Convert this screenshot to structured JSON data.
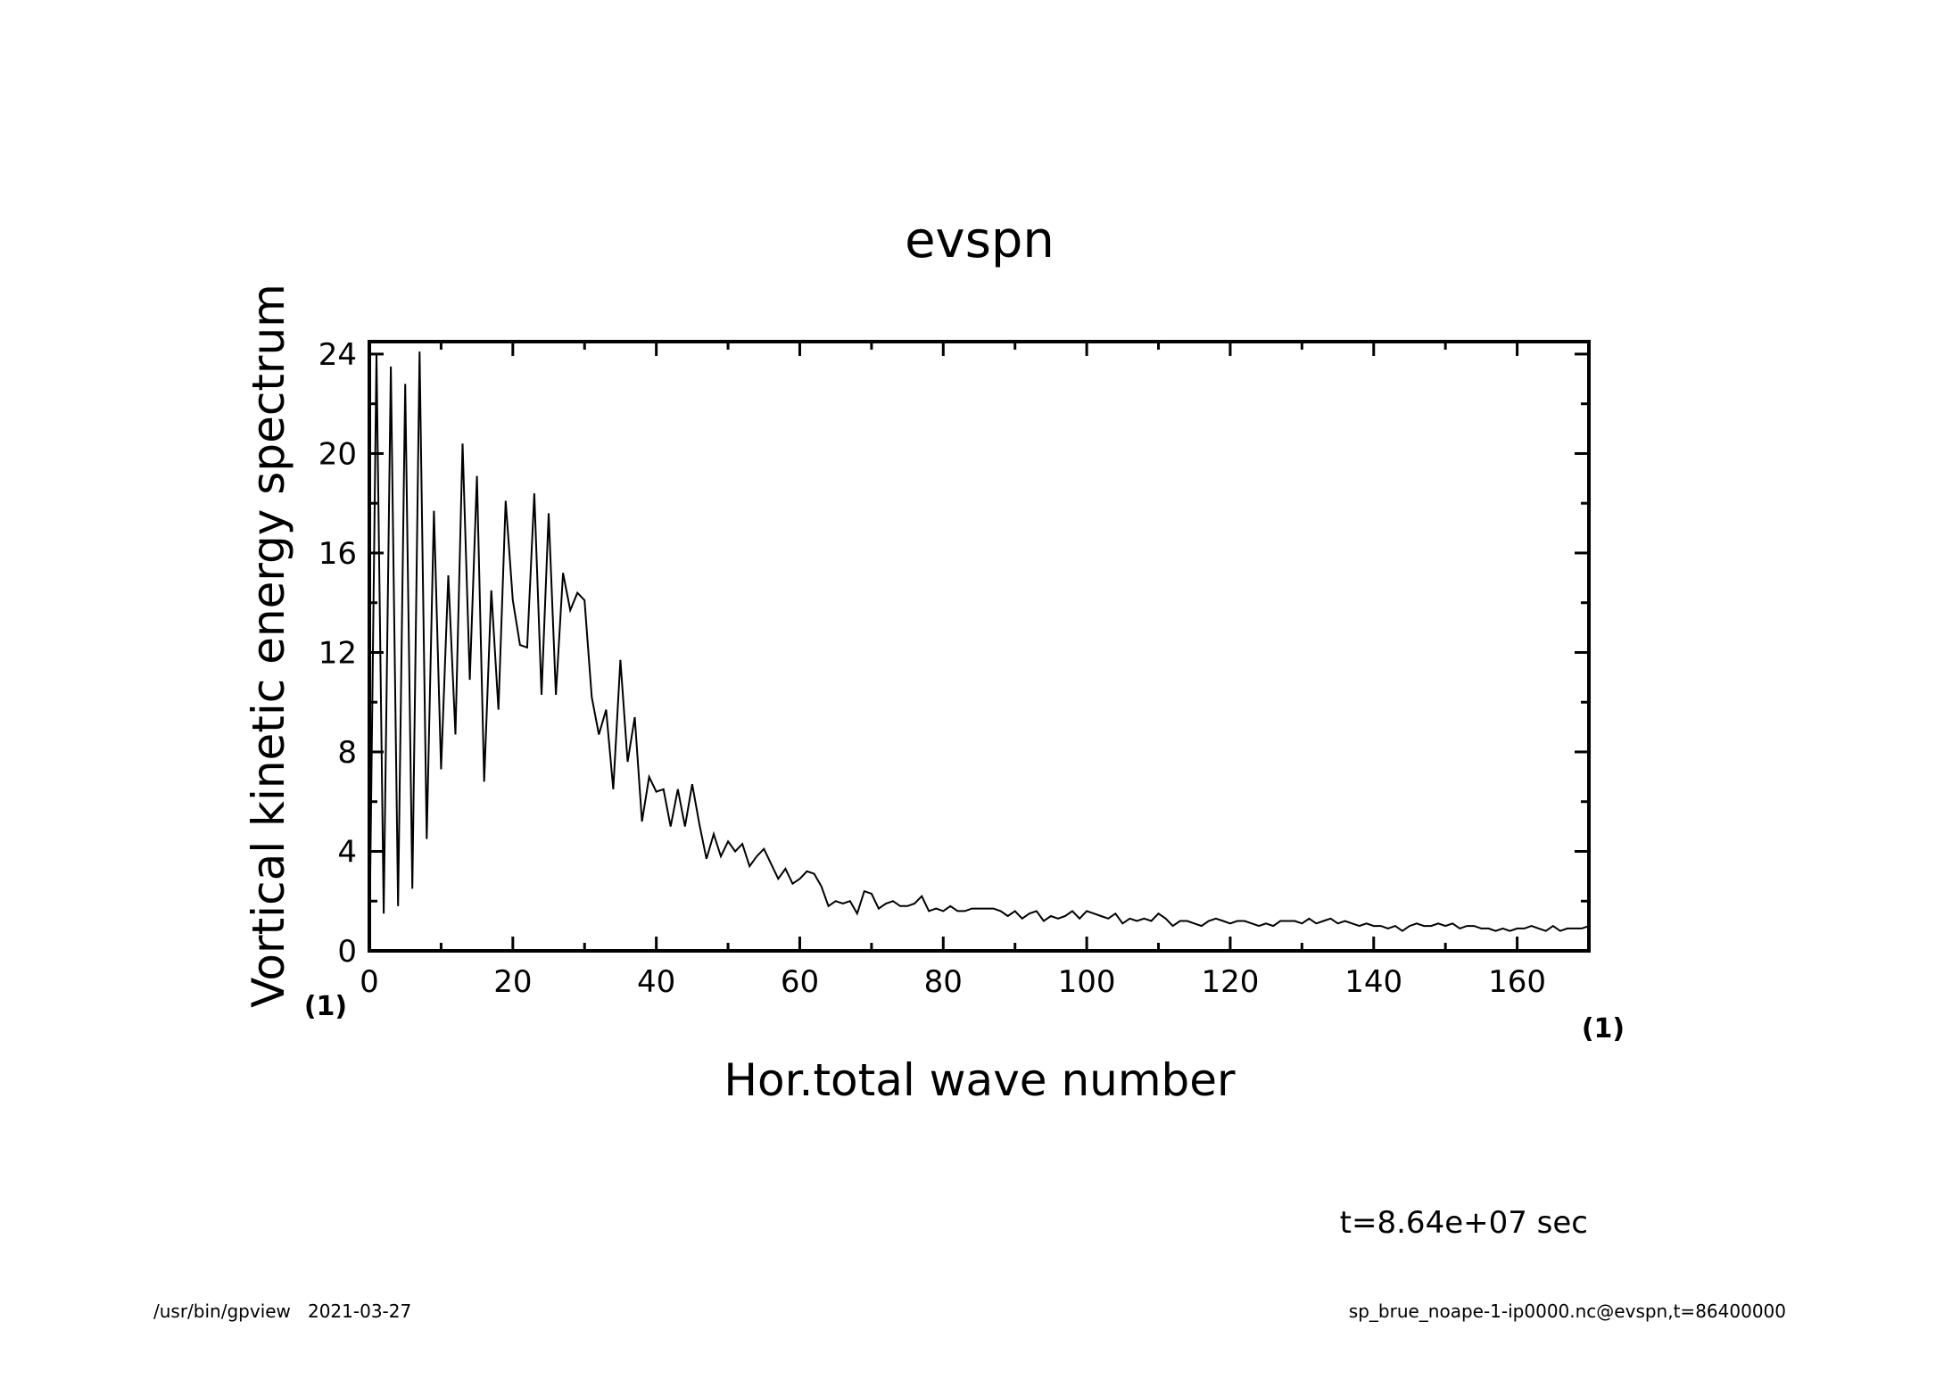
{
  "chart_data": {
    "type": "line",
    "title": "evspn",
    "xlabel": "Hor.total wave number",
    "ylabel": "Vortical kinetic energy spectrum",
    "xunit": "(1)",
    "yunit": "(1)",
    "xlim": [
      0,
      170
    ],
    "ylim": [
      0,
      24.5
    ],
    "xticks": [
      0,
      20,
      40,
      60,
      80,
      100,
      120,
      140,
      160
    ],
    "yticks": [
      0,
      4,
      8,
      12,
      16,
      20,
      24
    ],
    "grid": false,
    "legend": "none",
    "x": [
      0,
      1,
      2,
      3,
      4,
      5,
      6,
      7,
      8,
      9,
      10,
      11,
      12,
      13,
      14,
      15,
      16,
      17,
      18,
      19,
      20,
      21,
      22,
      23,
      24,
      25,
      26,
      27,
      28,
      29,
      30,
      31,
      32,
      33,
      34,
      35,
      36,
      37,
      38,
      39,
      40,
      41,
      42,
      43,
      44,
      45,
      46,
      47,
      48,
      49,
      50,
      51,
      52,
      53,
      54,
      55,
      56,
      57,
      58,
      59,
      60,
      61,
      62,
      63,
      64,
      65,
      66,
      67,
      68,
      69,
      70,
      71,
      72,
      73,
      74,
      75,
      76,
      77,
      78,
      79,
      80,
      81,
      82,
      83,
      84,
      85,
      86,
      87,
      88,
      89,
      90,
      91,
      92,
      93,
      94,
      95,
      96,
      97,
      98,
      99,
      100,
      101,
      102,
      103,
      104,
      105,
      106,
      107,
      108,
      109,
      110,
      111,
      112,
      113,
      114,
      115,
      116,
      117,
      118,
      119,
      120,
      121,
      122,
      123,
      124,
      125,
      126,
      127,
      128,
      129,
      130,
      131,
      132,
      133,
      134,
      135,
      136,
      137,
      138,
      139,
      140,
      141,
      142,
      143,
      144,
      145,
      146,
      147,
      148,
      149,
      150,
      151,
      152,
      153,
      154,
      155,
      156,
      157,
      158,
      159,
      160,
      161,
      162,
      163,
      164,
      165,
      166,
      167,
      168,
      169,
      170
    ],
    "y": [
      0,
      24.0,
      1.5,
      23.5,
      1.8,
      22.8,
      2.5,
      24.1,
      4.5,
      17.7,
      7.3,
      15.1,
      8.7,
      20.4,
      10.9,
      19.1,
      6.8,
      14.5,
      9.7,
      18.1,
      14.1,
      12.3,
      12.2,
      18.4,
      10.3,
      17.6,
      10.3,
      15.2,
      13.7,
      14.4,
      14.1,
      10.2,
      8.7,
      9.7,
      6.5,
      11.7,
      7.6,
      9.4,
      5.2,
      7.0,
      6.4,
      6.5,
      5.0,
      6.5,
      5.0,
      6.7,
      5.1,
      3.7,
      4.7,
      3.8,
      4.4,
      4.0,
      4.3,
      3.4,
      3.8,
      4.1,
      3.5,
      2.9,
      3.3,
      2.7,
      2.9,
      3.2,
      3.1,
      2.6,
      1.8,
      2.0,
      1.9,
      2.0,
      1.5,
      2.4,
      2.3,
      1.7,
      1.9,
      2.0,
      1.8,
      1.8,
      1.9,
      2.2,
      1.6,
      1.7,
      1.6,
      1.8,
      1.6,
      1.6,
      1.7,
      1.7,
      1.7,
      1.7,
      1.6,
      1.4,
      1.6,
      1.3,
      1.5,
      1.6,
      1.2,
      1.4,
      1.3,
      1.4,
      1.6,
      1.3,
      1.6,
      1.5,
      1.4,
      1.3,
      1.5,
      1.1,
      1.3,
      1.2,
      1.3,
      1.2,
      1.5,
      1.3,
      1.0,
      1.2,
      1.2,
      1.1,
      1.0,
      1.2,
      1.3,
      1.2,
      1.1,
      1.2,
      1.2,
      1.1,
      1.0,
      1.1,
      1.0,
      1.2,
      1.2,
      1.2,
      1.1,
      1.3,
      1.1,
      1.2,
      1.3,
      1.1,
      1.2,
      1.1,
      1.0,
      1.1,
      1.0,
      1.0,
      0.9,
      1.0,
      0.8,
      1.0,
      1.1,
      1.0,
      1.0,
      1.1,
      1.0,
      1.1,
      0.9,
      1.0,
      1.0,
      0.9,
      0.9,
      0.8,
      0.9,
      0.8,
      0.9,
      0.9,
      1.0,
      0.9,
      0.8,
      1.0,
      0.8,
      0.9,
      0.9,
      0.9,
      1.0
    ]
  },
  "time_note": "t=8.64e+07 sec",
  "footer": {
    "left": "/usr/bin/gpview   2021-03-27",
    "right": "sp_brue_noape-1-ip0000.nc@evspn,t=86400000"
  }
}
